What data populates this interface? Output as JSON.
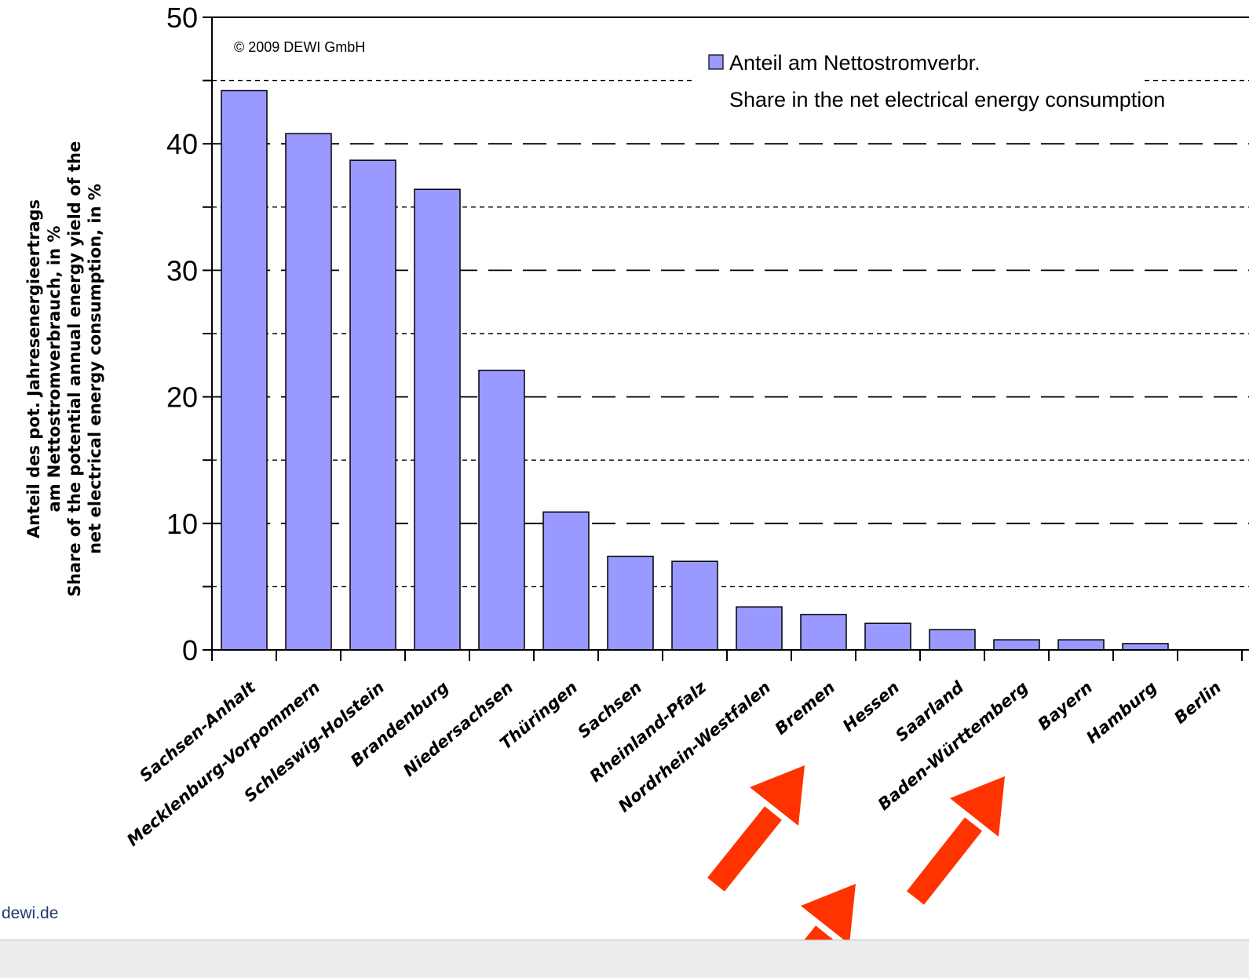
{
  "chart_data": {
    "type": "bar",
    "categories": [
      "Sachsen-Anhalt",
      "Mecklenburg-Vorpommern",
      "Schleswig-Holstein",
      "Brandenburg",
      "Niedersachsen",
      "Thüringen",
      "Sachsen",
      "Rheinland-Pfalz",
      "Nordrhein-Westfalen",
      "Bremen",
      "Hessen",
      "Saarland",
      "Baden-Württemberg",
      "Bayern",
      "Hamburg",
      "Berlin"
    ],
    "values": [
      44.2,
      40.8,
      38.7,
      36.4,
      22.1,
      10.9,
      7.4,
      7.0,
      3.4,
      2.8,
      2.1,
      1.6,
      0.8,
      0.8,
      0.5,
      0.0
    ],
    "ylim": [
      0,
      50
    ],
    "yticks": [
      0,
      10,
      20,
      30,
      40,
      50
    ],
    "ylabel_lines": [
      "Anteil des pot. Jahresenergieertrags",
      "am Nettostromverbrauch, in %",
      "Share of the potential annual energy yield of the",
      "net electrical energy consumption, in %"
    ],
    "legend": {
      "position": "top-right",
      "lines": [
        "Anteil am Nettostromverbr.",
        "Share in the net electrical energy consumption"
      ]
    },
    "grid": true,
    "bar_color": "#9999ff",
    "annotations": {
      "copyright": "© 2009 DEWI GmbH",
      "source": "dewi.de",
      "arrows": "red arrows pointing to Bremen, Baden-Württemberg, Bayern"
    }
  },
  "colors": {
    "bar": "#9999ff",
    "arrow": "#ff3300"
  }
}
